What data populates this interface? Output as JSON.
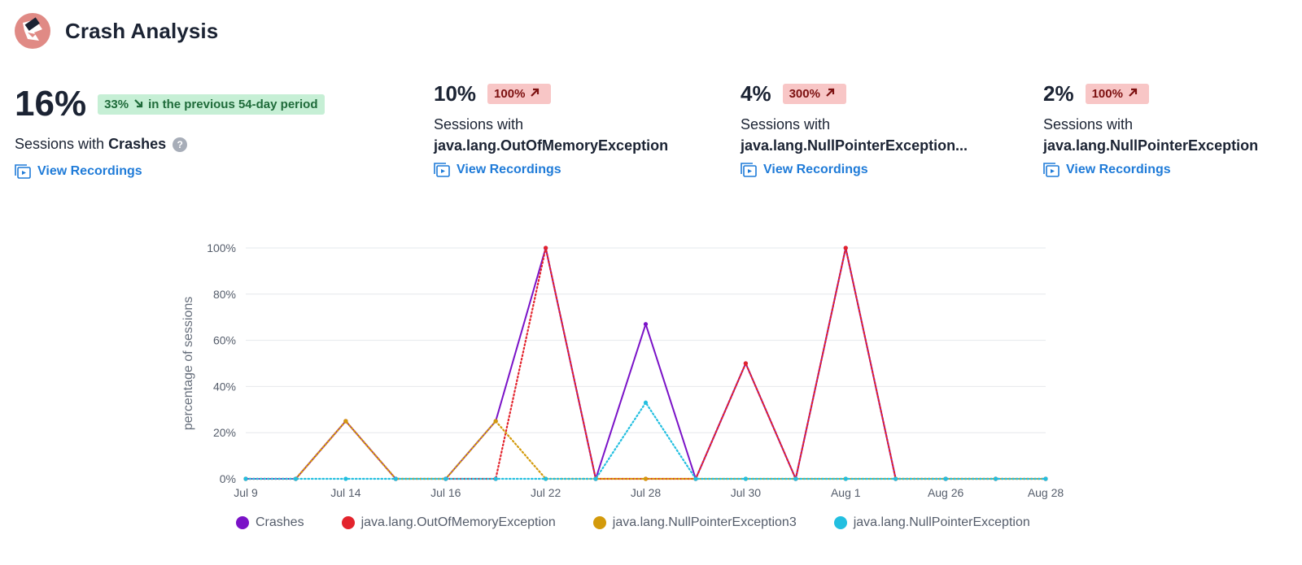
{
  "header": {
    "title": "Crash Analysis",
    "logo": "crash-icon"
  },
  "metrics": [
    {
      "value": "16%",
      "badge": "33%",
      "badge_note": "in the previous 54-day period",
      "badge_type": "good",
      "desc_prefix": "Sessions with ",
      "desc_bold": "Crashes",
      "help": "?",
      "link": "View Recordings"
    },
    {
      "value": "10%",
      "badge": "100%",
      "badge_type": "bad",
      "desc_prefix": "Sessions with",
      "desc_bold": "java.lang.OutOfMemoryException",
      "link": "View Recordings"
    },
    {
      "value": "4%",
      "badge": "300%",
      "badge_type": "bad",
      "desc_prefix": "Sessions with",
      "desc_bold": "java.lang.NullPointerException...",
      "link": "View Recordings"
    },
    {
      "value": "2%",
      "badge": "100%",
      "badge_type": "bad",
      "desc_prefix": "Sessions with",
      "desc_bold": "java.lang.NullPointerException",
      "link": "View Recordings"
    }
  ],
  "chart_data": {
    "type": "line",
    "ylabel": "percentage of sessions",
    "xlabel": "",
    "ylim": [
      0,
      100
    ],
    "yticks": [
      "0%",
      "20%",
      "40%",
      "60%",
      "80%",
      "100%"
    ],
    "x_labels": [
      "Jul 9",
      "Jul 14",
      "Jul 16",
      "Jul 22",
      "Jul 28",
      "Jul 30",
      "Aug 1",
      "Aug 26",
      "Aug 28"
    ],
    "x_count": 17,
    "grid": true,
    "legend_position": "bottom",
    "series": [
      {
        "name": "Crashes",
        "color": "#7a12c7",
        "style": "solid",
        "values": [
          0,
          0,
          25,
          0,
          0,
          25,
          100,
          0,
          67,
          0,
          50,
          0,
          100,
          0,
          0,
          0,
          0
        ]
      },
      {
        "name": "java.lang.OutOfMemoryException",
        "color": "#e3232c",
        "style": "dotted",
        "values": [
          0,
          0,
          25,
          0,
          0,
          0,
          100,
          0,
          0,
          0,
          50,
          0,
          100,
          0,
          0,
          0,
          0
        ]
      },
      {
        "name": "java.lang.NullPointerException3",
        "color": "#d39a0b",
        "style": "dotted",
        "values": [
          0,
          0,
          25,
          0,
          0,
          25,
          0,
          0,
          0,
          0,
          0,
          0,
          0,
          0,
          0,
          0,
          0
        ]
      },
      {
        "name": "java.lang.NullPointerException",
        "color": "#22bfe0",
        "style": "dotted",
        "values": [
          0,
          0,
          0,
          0,
          0,
          0,
          0,
          0,
          33,
          0,
          0,
          0,
          0,
          0,
          0,
          0,
          0
        ]
      }
    ]
  }
}
